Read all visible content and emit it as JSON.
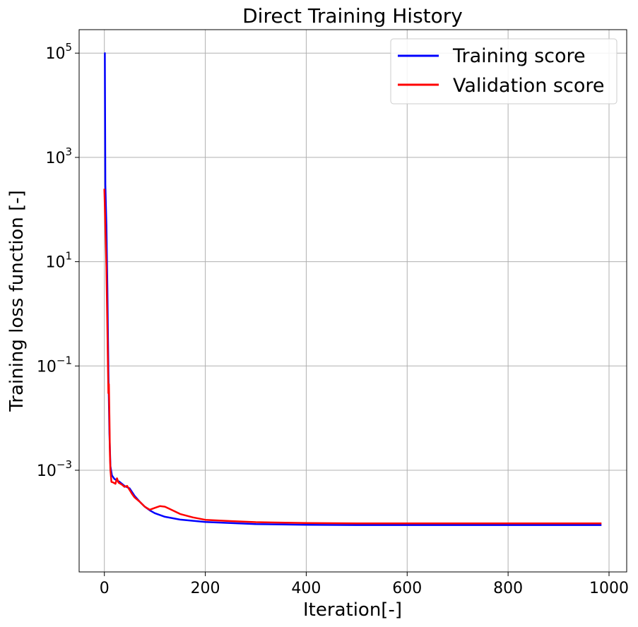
{
  "chart_data": {
    "type": "line",
    "title": "Direct Training History",
    "xlabel": "Iteration[-]",
    "ylabel": "Training loss function [-]",
    "xlim": [
      -50,
      1035
    ],
    "ylim_log10": [
      -4.95,
      5.45
    ],
    "y_scale": "log",
    "grid": true,
    "legend_position": "top-right",
    "x_ticks": [
      0,
      200,
      400,
      600,
      800,
      1000
    ],
    "x_tick_labels": [
      "0",
      "200",
      "400",
      "600",
      "800",
      "1000"
    ],
    "y_ticks": [
      {
        "base": "10",
        "exp": "5",
        "value": 100000
      },
      {
        "base": "10",
        "exp": "3",
        "value": 1000
      },
      {
        "base": "10",
        "exp": "1",
        "value": 10
      },
      {
        "base": "10",
        "exp": "−1",
        "value": 0.1
      },
      {
        "base": "10",
        "exp": "−3",
        "value": 0.001
      }
    ],
    "series": [
      {
        "name": "Training score",
        "color": "#0000ff",
        "points": [
          [
            0,
            100000
          ],
          [
            1,
            100000
          ],
          [
            2,
            300
          ],
          [
            4,
            50
          ],
          [
            6,
            3
          ],
          [
            8,
            0.08
          ],
          [
            10,
            0.005
          ],
          [
            12,
            0.0012
          ],
          [
            15,
            0.0008
          ],
          [
            20,
            0.00068
          ],
          [
            30,
            0.0006
          ],
          [
            40,
            0.0005
          ],
          [
            50,
            0.00045
          ],
          [
            60,
            0.00032
          ],
          [
            70,
            0.00025
          ],
          [
            80,
            0.0002
          ],
          [
            90,
            0.00017
          ],
          [
            100,
            0.00015
          ],
          [
            120,
            0.000128
          ],
          [
            150,
            0.000113
          ],
          [
            200,
            0.000102
          ],
          [
            250,
            9.7e-05
          ],
          [
            300,
            9.3e-05
          ],
          [
            400,
            9e-05
          ],
          [
            500,
            8.9e-05
          ],
          [
            600,
            8.9e-05
          ],
          [
            700,
            8.9e-05
          ],
          [
            800,
            8.9e-05
          ],
          [
            985,
            8.9e-05
          ]
        ]
      },
      {
        "name": "Validation score",
        "color": "#ff0000",
        "points": [
          [
            0,
            250
          ],
          [
            2,
            50
          ],
          [
            4,
            8
          ],
          [
            6,
            0.5
          ],
          [
            8,
            0.03
          ],
          [
            9,
            0.045
          ],
          [
            10,
            0.01
          ],
          [
            11,
            0.002
          ],
          [
            12,
            0.001
          ],
          [
            14,
            0.0006
          ],
          [
            18,
            0.00058
          ],
          [
            22,
            0.00055
          ],
          [
            25,
            0.0007
          ],
          [
            28,
            0.00058
          ],
          [
            32,
            0.00055
          ],
          [
            36,
            0.00052
          ],
          [
            40,
            0.00048
          ],
          [
            45,
            0.0005
          ],
          [
            50,
            0.00042
          ],
          [
            55,
            0.00035
          ],
          [
            60,
            0.0003
          ],
          [
            70,
            0.00025
          ],
          [
            80,
            0.0002
          ],
          [
            90,
            0.000175
          ],
          [
            100,
            0.00019
          ],
          [
            110,
            0.000205
          ],
          [
            120,
            0.0002
          ],
          [
            130,
            0.00018
          ],
          [
            150,
            0.000145
          ],
          [
            175,
            0.000125
          ],
          [
            200,
            0.000112
          ],
          [
            250,
            0.000106
          ],
          [
            300,
            0.000101
          ],
          [
            400,
            9.7e-05
          ],
          [
            500,
            9.6e-05
          ],
          [
            600,
            9.6e-05
          ],
          [
            700,
            9.6e-05
          ],
          [
            800,
            9.6e-05
          ],
          [
            985,
            9.6e-05
          ]
        ]
      }
    ]
  }
}
